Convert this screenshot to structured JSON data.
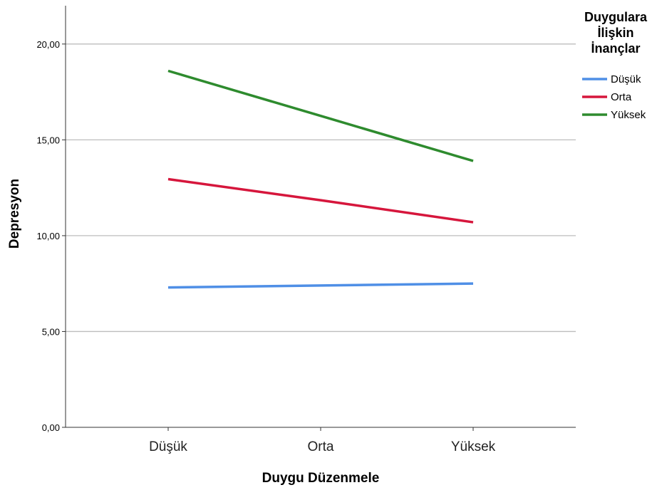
{
  "chart_data": {
    "type": "line",
    "categories": [
      "Düşük",
      "Orta",
      "Yüksek"
    ],
    "xlabel": "Duygu Düzenmele",
    "ylabel": "Depresyon",
    "ylim": [
      0,
      22
    ],
    "yticks": [
      0,
      5,
      10,
      15,
      20
    ],
    "ytick_labels": [
      "0,00",
      "5,00",
      "10,00",
      "15,00",
      "20,00"
    ],
    "grid": "horizontal",
    "legend": {
      "title": [
        "Duygulara",
        "İlişkin",
        "İnançlar"
      ],
      "placement": "right"
    },
    "series": [
      {
        "name": "Düşük",
        "color": "#4f8fe6",
        "values": [
          7.3,
          7.4,
          7.5
        ]
      },
      {
        "name": "Orta",
        "color": "#d6163c",
        "values": [
          12.95,
          11.85,
          10.7
        ]
      },
      {
        "name": "Yüksek",
        "color": "#2e8b2e",
        "values": [
          18.6,
          16.25,
          13.9
        ]
      }
    ]
  }
}
